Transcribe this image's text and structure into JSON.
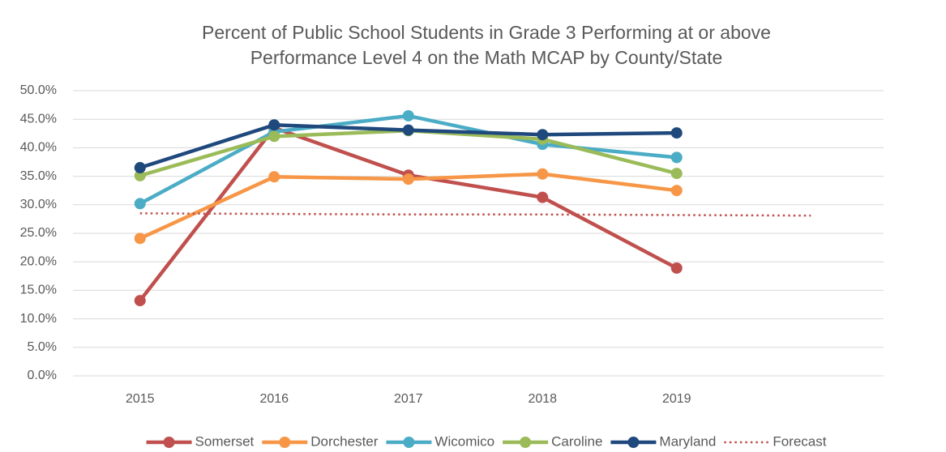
{
  "chart_data": {
    "type": "line",
    "title": [
      "Percent of Public School Students in Grade 3 Performing at or above",
      "Performance Level 4 on the Math MCAP by County/State"
    ],
    "categories": [
      "2015",
      "2016",
      "2017",
      "2018",
      "2019",
      null
    ],
    "series": [
      {
        "name": "Somerset",
        "color": "#c0504d",
        "marker": "circle",
        "line_style": "solid",
        "values": [
          13.2,
          43.5,
          35.2,
          31.3,
          18.9,
          null
        ]
      },
      {
        "name": "Dorchester",
        "color": "#f79646",
        "marker": "circle",
        "line_style": "solid",
        "values": [
          24.1,
          34.9,
          34.5,
          35.4,
          32.5,
          null
        ]
      },
      {
        "name": "Wicomico",
        "color": "#4bacc6",
        "marker": "circle",
        "line_style": "solid",
        "values": [
          30.2,
          42.8,
          45.6,
          40.6,
          38.3,
          null
        ]
      },
      {
        "name": "Caroline",
        "color": "#9bbb59",
        "marker": "circle",
        "line_style": "solid",
        "values": [
          35.1,
          42.0,
          43.0,
          41.5,
          35.5,
          null
        ]
      },
      {
        "name": "Maryland",
        "color": "#1f497d",
        "marker": "circle",
        "line_style": "solid",
        "values": [
          36.5,
          44.0,
          43.1,
          42.3,
          42.6,
          null
        ]
      },
      {
        "name": "Forecast",
        "color": "#c0504d",
        "marker": "none",
        "line_style": "dotted",
        "values": [
          28.5,
          28.4,
          28.3,
          28.3,
          28.2,
          28.1
        ]
      }
    ],
    "ylim": [
      0,
      50
    ],
    "yticks": [
      {
        "value": 0,
        "label": "0.0%"
      },
      {
        "value": 5,
        "label": "5.0%"
      },
      {
        "value": 10,
        "label": "10.0%"
      },
      {
        "value": 15,
        "label": "15.0%"
      },
      {
        "value": 20,
        "label": "20.0%"
      },
      {
        "value": 25,
        "label": "25.0%"
      },
      {
        "value": 30,
        "label": "30.0%"
      },
      {
        "value": 35,
        "label": "35.0%"
      },
      {
        "value": 40,
        "label": "40.0%"
      },
      {
        "value": 45,
        "label": "45.0%"
      },
      {
        "value": 50,
        "label": "50.0%"
      }
    ],
    "grid": true,
    "legend": "bottom"
  }
}
